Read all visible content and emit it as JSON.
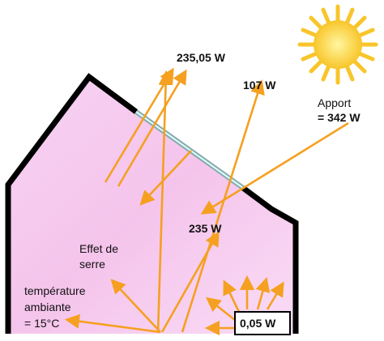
{
  "labels": {
    "reflected": "235,05 W",
    "escaping": "107 W",
    "input_line1": "Apport",
    "input_line2": "= 342 W",
    "absorbed": "235 W",
    "effect_line1": "Effet de",
    "effect_line2": "serre",
    "temp_line1": "température",
    "temp_line2": "ambiante",
    "temp_line3": "= 15°C",
    "loss": "0,05 W"
  }
}
